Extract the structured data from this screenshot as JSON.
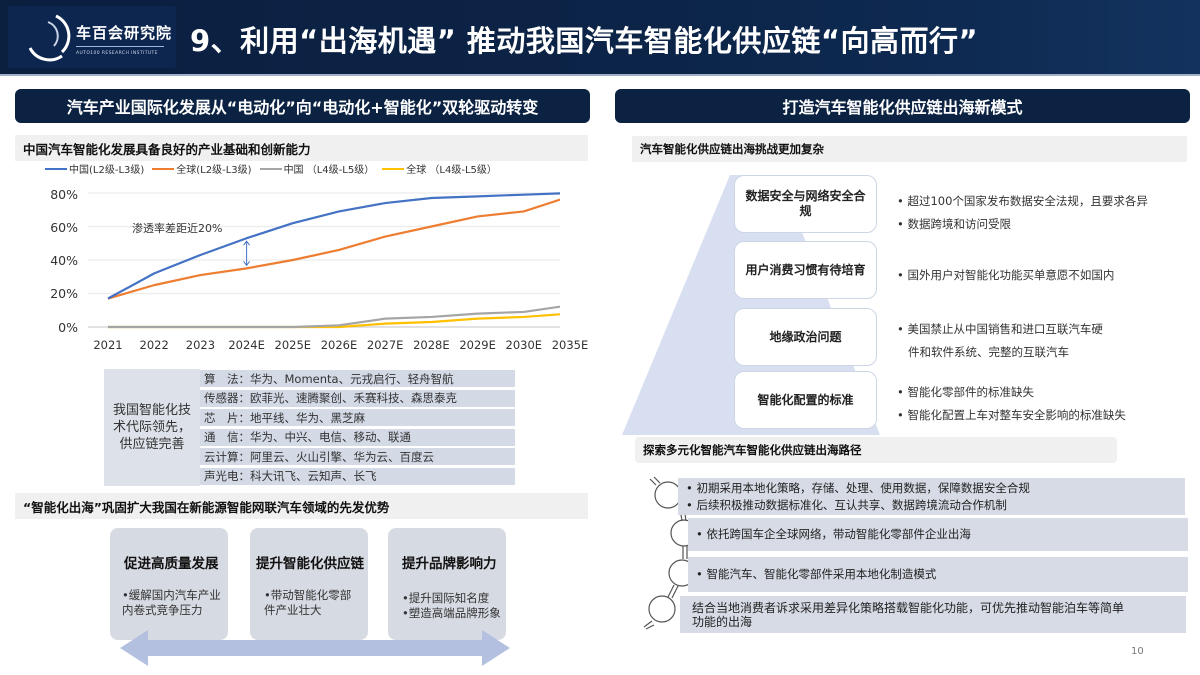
{
  "header": {
    "logo_cn": "车百会研究院",
    "logo_en": "AUTO100 RESEARCH INSTITUTE",
    "title": "9、利用“出海机遇” 推动我国汽车智能化供应链“向高而行”"
  },
  "left_panel": {
    "title": "汽车产业国际化发展从“电动化”向“电动化+智能化”双轮驱动转变",
    "section1_title": "中国汽车智能化发展具备良好的产业基础和创新能力",
    "annotation": "渗透率差距近20%",
    "tech": {
      "summary": "我国智能化技术代际领先，供应链完善",
      "rows": [
        {
          "label": "算　法",
          "value": "华为、Momenta、元戎启行、轻舟智航"
        },
        {
          "label": "传感器",
          "value": "欧菲光、速腾聚创、禾赛科技、森思泰克"
        },
        {
          "label": "芯　片",
          "value": "地平线、华为、黑芝麻"
        },
        {
          "label": "通　信",
          "value": "华为、中兴、电信、移动、联通"
        },
        {
          "label": "云计算",
          "value": "阿里云、火山引擎、华为云、百度云"
        },
        {
          "label": "声光电",
          "value": "科大讯飞、云知声、长飞"
        }
      ]
    },
    "section2_title": "“智能化出海”巩固扩大我国在新能源智能网联汽车领域的先发优势",
    "cards": [
      {
        "title": "促进高质量发展",
        "lines": [
          "•缓解国内汽车产业",
          " 内卷式竞争压力"
        ]
      },
      {
        "title": "提升智能化供应链",
        "lines": [
          "•带动智能化零部",
          " 件产业壮大"
        ]
      },
      {
        "title": "提升品牌影响力",
        "lines": [
          "•提升国际知名度",
          "•塑造高端品牌形象"
        ]
      }
    ]
  },
  "right_panel": {
    "title": "打造汽车智能化供应链出海新模式",
    "section1_title": "汽车智能化供应链出海挑战更加复杂",
    "challenges": [
      {
        "name": "数据安全与网络安全合规",
        "bullets": [
          "• 超过100个国家发布数据安全法规，且要求各异",
          "• 数据跨境和访问受限"
        ]
      },
      {
        "name": "用户消费习惯有待培育",
        "bullets": [
          "• 国外用户对智能化功能买单意愿不如国内"
        ]
      },
      {
        "name": "地缘政治问题",
        "bullets": [
          "• 美国禁止从中国销售和进口互联汽车硬",
          "   件和软件系统、完整的互联汽车"
        ]
      },
      {
        "name": "智能化配置的标准",
        "bullets": [
          "• 智能化零部件的标准缺失",
          "• 智能化配置上车对整车安全影响的标准缺失"
        ]
      }
    ],
    "section2_title": "探索多元化智能汽车智能化供应链出海路径",
    "paths": [
      {
        "lines": [
          "•  初期采用本地化策略，存储、处理、使用数据，保障数据安全合规",
          "•  后续积极推动数据标准化、互认共享、数据跨境流动合作机制"
        ]
      },
      {
        "lines": [
          "•  依托跨国车企全球网络，带动智能化零部件企业出海"
        ]
      },
      {
        "lines": [
          "•  智能汽车、智能化零部件采用本地化制造模式"
        ]
      },
      {
        "lines": [
          "结合当地消费者诉求采用差异化策略搭载智能化功能，可优先推动智能泊车等简单",
          "功能的出海"
        ]
      }
    ]
  },
  "page_number": "10",
  "colors": {
    "navy": "#0b2242",
    "china_l2l3": "#4472c4",
    "global_l2l3": "#ed7d31",
    "china_l4l5": "#a5a5a5",
    "global_l4l5": "#ffc000"
  },
  "chart_data": {
    "type": "line",
    "title": "中国汽车智能化发展具备良好的产业基础和创新能力",
    "xlabel": "",
    "ylabel": "",
    "ylim": [
      0,
      80
    ],
    "yticks": [
      "0%",
      "20%",
      "40%",
      "60%",
      "80%"
    ],
    "grid": true,
    "legend_position": "top",
    "categories": [
      "2021",
      "2022",
      "2023",
      "2024E",
      "2025E",
      "2026E",
      "2027E",
      "2028E",
      "2029E",
      "2030E",
      "2035E"
    ],
    "series": [
      {
        "name": "中国(L2级-L3级)",
        "color": "#4472c4",
        "values": [
          17,
          32,
          43,
          53,
          62,
          69,
          74,
          77,
          78,
          79,
          80
        ]
      },
      {
        "name": "全球(L2级-L3级)",
        "color": "#ed7d31",
        "values": [
          17,
          25,
          31,
          35,
          40,
          46,
          54,
          60,
          66,
          69,
          78
        ]
      },
      {
        "name": "中国 （L4级-L5级）",
        "color": "#a5a5a5",
        "values": [
          0,
          0,
          0,
          0,
          0,
          1,
          5,
          6,
          8,
          9,
          13
        ]
      },
      {
        "name": "全球 （L4级-L5级）",
        "color": "#ffc000",
        "values": [
          0,
          0,
          0,
          0,
          0,
          0,
          2,
          3,
          5,
          6,
          8
        ]
      }
    ],
    "annotations": [
      {
        "text": "渗透率差距近20%",
        "at": "2024E"
      }
    ]
  }
}
